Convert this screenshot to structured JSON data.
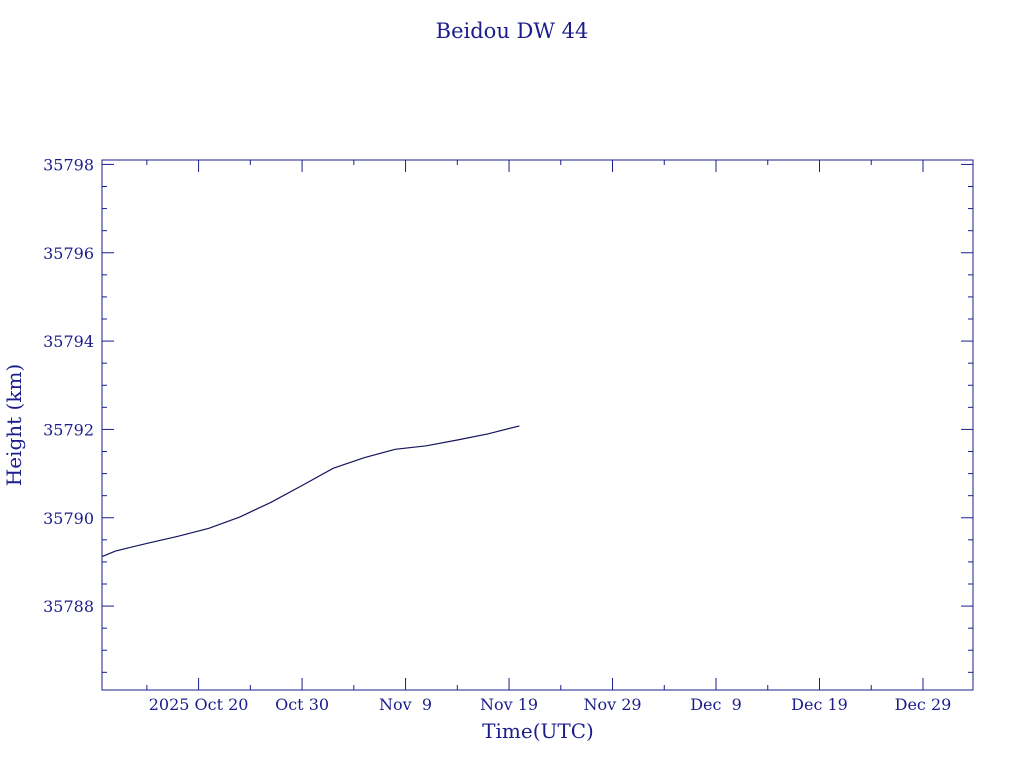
{
  "chart_data": {
    "type": "line",
    "title": "Beidou DW 44",
    "xlabel": "Time(UTC)",
    "ylabel": "Height (km)",
    "x_tick_labels": [
      "2025 Oct 20",
      "Oct 30",
      "Nov  9",
      "Nov 19",
      "Nov 29",
      "Dec  9",
      "Dec 19",
      "Dec 29"
    ],
    "x_tick_dates": [
      "2025-10-20",
      "2025-10-30",
      "2025-11-09",
      "2025-11-19",
      "2025-11-29",
      "2025-12-09",
      "2025-12-19",
      "2025-12-29"
    ],
    "xlim": [
      "2025-10-10T16:00",
      "2025-12-33T20:00"
    ],
    "y_ticks": [
      35788,
      35790,
      35792,
      35794,
      35796,
      35798
    ],
    "ylim": [
      35786.1,
      35798.1
    ],
    "grid": false,
    "series": [
      {
        "x": [
          "2025-10-10T16:00",
          "2025-10-12",
          "2025-10-15",
          "2025-10-18",
          "2025-10-21",
          "2025-10-24",
          "2025-10-27",
          "2025-10-30",
          "2025-11-02",
          "2025-11-05",
          "2025-11-08",
          "2025-11-11",
          "2025-11-14",
          "2025-11-17",
          "2025-11-20"
        ],
        "y": [
          35789.12,
          35789.25,
          35789.42,
          35789.58,
          35789.76,
          35790.02,
          35790.35,
          35790.73,
          35791.12,
          35791.36,
          35791.55,
          35791.63,
          35791.76,
          35791.9,
          35792.08
        ]
      }
    ]
  },
  "colors": {
    "ink": "#1c1c8c",
    "line": "#14145e",
    "background": "#ffffff"
  }
}
